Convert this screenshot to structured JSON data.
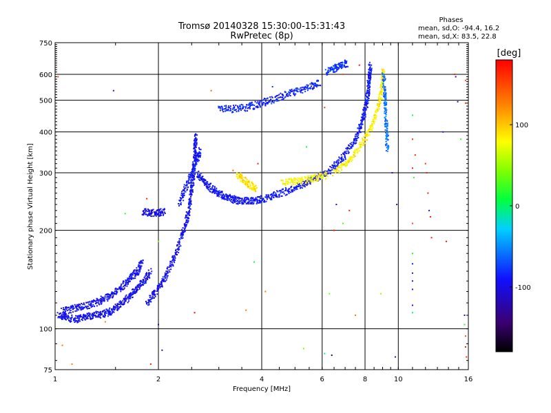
{
  "chart_data": {
    "type": "scatter",
    "title": "Tromsø 20140328 15:30:00-15:31:43",
    "subtitle": "RwPretec (8p)",
    "xlabel": "Frequency [MHz]",
    "ylabel": "Stationary phase Virtual Height [km]",
    "x_scale": "log",
    "y_scale": "log",
    "xlim": [
      1,
      16
    ],
    "ylim": [
      75,
      750
    ],
    "x_ticks": [
      1,
      2,
      4,
      6,
      8,
      10,
      16
    ],
    "y_ticks": [
      75,
      100,
      200,
      300,
      400,
      500,
      600,
      750
    ],
    "grid": true,
    "stats": {
      "heading": "Phases",
      "line_o": "mean, sd,O: -94.4, 16.2",
      "line_x": "mean, sd,X:  83.5, 22.8"
    },
    "colorbar": {
      "label": "[deg]",
      "min": -180,
      "max": 180,
      "ticks": [
        100,
        0,
        -100
      ]
    },
    "traces": [
      {
        "phase": -95,
        "points": [
          [
            1.02,
            110
          ],
          [
            1.08,
            108
          ],
          [
            1.15,
            107
          ],
          [
            1.22,
            109
          ],
          [
            1.3,
            110
          ],
          [
            1.38,
            111
          ],
          [
            1.45,
            113
          ],
          [
            1.52,
            117
          ],
          [
            1.6,
            122
          ],
          [
            1.68,
            128
          ],
          [
            1.75,
            134
          ],
          [
            1.82,
            141
          ],
          [
            1.9,
            150
          ]
        ]
      },
      {
        "phase": -95,
        "points": [
          [
            1.05,
            113
          ],
          [
            1.12,
            115
          ],
          [
            1.2,
            117
          ],
          [
            1.28,
            119
          ],
          [
            1.36,
            122
          ],
          [
            1.44,
            126
          ],
          [
            1.52,
            131
          ],
          [
            1.6,
            137
          ],
          [
            1.67,
            144
          ],
          [
            1.74,
            150
          ],
          [
            1.8,
            160
          ]
        ]
      },
      {
        "phase": -95,
        "points": [
          [
            1.85,
            120
          ],
          [
            1.95,
            128
          ],
          [
            2.05,
            138
          ],
          [
            2.15,
            152
          ],
          [
            2.25,
            170
          ],
          [
            2.35,
            195
          ],
          [
            2.42,
            215
          ],
          [
            2.47,
            240
          ],
          [
            2.5,
            265
          ],
          [
            2.53,
            295
          ],
          [
            2.55,
            330
          ],
          [
            2.56,
            360
          ],
          [
            2.57,
            390
          ]
        ]
      },
      {
        "phase": -92,
        "points": [
          [
            2.6,
            300
          ],
          [
            2.7,
            285
          ],
          [
            2.82,
            272
          ],
          [
            2.95,
            262
          ],
          [
            3.1,
            255
          ],
          [
            3.25,
            250
          ],
          [
            3.4,
            247
          ],
          [
            3.6,
            246
          ],
          [
            3.8,
            247
          ],
          [
            4.0,
            249
          ],
          [
            4.3,
            254
          ],
          [
            4.6,
            261
          ],
          [
            5.0,
            270
          ],
          [
            5.4,
            280
          ],
          [
            5.8,
            290
          ],
          [
            6.2,
            300
          ]
        ]
      },
      {
        "phase": -90,
        "points": [
          [
            6.2,
            300
          ],
          [
            6.6,
            318
          ],
          [
            7.0,
            340
          ],
          [
            7.4,
            370
          ],
          [
            7.7,
            405
          ],
          [
            7.9,
            440
          ],
          [
            8.05,
            480
          ],
          [
            8.15,
            520
          ],
          [
            8.2,
            560
          ],
          [
            8.25,
            600
          ],
          [
            8.3,
            640
          ]
        ]
      },
      {
        "phase": 85,
        "points": [
          [
            6.5,
            300
          ],
          [
            7.0,
            320
          ],
          [
            7.5,
            345
          ],
          [
            8.0,
            380
          ],
          [
            8.4,
            420
          ],
          [
            8.7,
            470
          ],
          [
            8.9,
            520
          ],
          [
            9.0,
            570
          ],
          [
            9.05,
            620
          ]
        ]
      },
      {
        "phase": 80,
        "points": [
          [
            4.6,
            280
          ],
          [
            5.0,
            282
          ],
          [
            5.4,
            285
          ],
          [
            5.8,
            290
          ],
          [
            6.2,
            296
          ]
        ]
      },
      {
        "phase": 90,
        "points": [
          [
            3.4,
            295
          ],
          [
            3.55,
            285
          ],
          [
            3.7,
            275
          ],
          [
            3.85,
            268
          ]
        ]
      },
      {
        "phase": -85,
        "points": [
          [
            3.0,
            470
          ],
          [
            3.3,
            470
          ],
          [
            3.6,
            475
          ],
          [
            3.9,
            485
          ],
          [
            4.2,
            498
          ],
          [
            4.6,
            515
          ],
          [
            5.0,
            530
          ],
          [
            5.5,
            548
          ],
          [
            5.9,
            565
          ]
        ]
      },
      {
        "phase": -80,
        "points": [
          [
            6.2,
            610
          ],
          [
            6.5,
            625
          ],
          [
            6.8,
            640
          ],
          [
            7.1,
            650
          ]
        ]
      },
      {
        "phase": -100,
        "points": [
          [
            1.8,
            228
          ],
          [
            1.9,
            226
          ],
          [
            2.0,
            226
          ],
          [
            2.08,
            228
          ]
        ]
      },
      {
        "phase": -90,
        "points": [
          [
            2.3,
            240
          ],
          [
            2.4,
            270
          ],
          [
            2.5,
            300
          ],
          [
            2.6,
            330
          ],
          [
            2.65,
            350
          ]
        ]
      },
      {
        "phase": -60,
        "points": [
          [
            9.05,
            600
          ],
          [
            9.15,
            520
          ],
          [
            9.2,
            460
          ],
          [
            9.25,
            400
          ],
          [
            9.3,
            350
          ]
        ]
      }
    ],
    "scatter_points": [
      {
        "x": 1.48,
        "y": 535,
        "phase": -100
      },
      {
        "x": 1.02,
        "y": 590,
        "phase": 150
      },
      {
        "x": 2.85,
        "y": 535,
        "phase": 140
      },
      {
        "x": 4.3,
        "y": 550,
        "phase": -80
      },
      {
        "x": 6.9,
        "y": 600,
        "phase": 150
      },
      {
        "x": 7.7,
        "y": 640,
        "phase": 170
      },
      {
        "x": 5.4,
        "y": 360,
        "phase": 10
      },
      {
        "x": 6.1,
        "y": 475,
        "phase": 160
      },
      {
        "x": 3.9,
        "y": 320,
        "phase": 170
      },
      {
        "x": 1.85,
        "y": 250,
        "phase": 170
      },
      {
        "x": 1.6,
        "y": 225,
        "phase": 20
      },
      {
        "x": 2.0,
        "y": 185,
        "phase": 40
      },
      {
        "x": 3.3,
        "y": 305,
        "phase": 140
      },
      {
        "x": 3.8,
        "y": 160,
        "phase": 10
      },
      {
        "x": 6.5,
        "y": 200,
        "phase": 170
      },
      {
        "x": 6.6,
        "y": 240,
        "phase": -100
      },
      {
        "x": 6.9,
        "y": 210,
        "phase": 30
      },
      {
        "x": 7.2,
        "y": 230,
        "phase": 170
      },
      {
        "x": 4.1,
        "y": 130,
        "phase": 130
      },
      {
        "x": 3.6,
        "y": 114,
        "phase": 130
      },
      {
        "x": 2.55,
        "y": 112,
        "phase": 180
      },
      {
        "x": 2.0,
        "y": 103,
        "phase": -130
      },
      {
        "x": 1.4,
        "y": 105,
        "phase": 130
      },
      {
        "x": 1.05,
        "y": 89,
        "phase": 130
      },
      {
        "x": 1.12,
        "y": 78,
        "phase": 130
      },
      {
        "x": 1.9,
        "y": 78,
        "phase": 170
      },
      {
        "x": 2.05,
        "y": 86,
        "phase": -100
      },
      {
        "x": 5.3,
        "y": 87,
        "phase": 40
      },
      {
        "x": 6.1,
        "y": 84,
        "phase": -10
      },
      {
        "x": 6.4,
        "y": 83,
        "phase": -160
      },
      {
        "x": 6.3,
        "y": 128,
        "phase": 40
      },
      {
        "x": 7.5,
        "y": 110,
        "phase": 130
      },
      {
        "x": 8.9,
        "y": 128,
        "phase": 50
      },
      {
        "x": 9.8,
        "y": 82,
        "phase": -100
      },
      {
        "x": 9.6,
        "y": 300,
        "phase": -100
      },
      {
        "x": 9.9,
        "y": 240,
        "phase": -110
      },
      {
        "x": 11.0,
        "y": 450,
        "phase": 10
      },
      {
        "x": 11.0,
        "y": 380,
        "phase": 160
      },
      {
        "x": 11.2,
        "y": 340,
        "phase": 170
      },
      {
        "x": 11.0,
        "y": 310,
        "phase": 170
      },
      {
        "x": 11.1,
        "y": 290,
        "phase": 20
      },
      {
        "x": 11.0,
        "y": 210,
        "phase": 150
      },
      {
        "x": 11.0,
        "y": 170,
        "phase": 10
      },
      {
        "x": 11.0,
        "y": 158,
        "phase": -90
      },
      {
        "x": 11.0,
        "y": 148,
        "phase": -110
      },
      {
        "x": 11.0,
        "y": 140,
        "phase": -100
      },
      {
        "x": 11.0,
        "y": 132,
        "phase": -100
      },
      {
        "x": 11.0,
        "y": 118,
        "phase": -100
      },
      {
        "x": 11.0,
        "y": 112,
        "phase": 10
      },
      {
        "x": 12.0,
        "y": 320,
        "phase": 160
      },
      {
        "x": 12.1,
        "y": 300,
        "phase": 170
      },
      {
        "x": 12.2,
        "y": 260,
        "phase": 170
      },
      {
        "x": 12.3,
        "y": 230,
        "phase": -110
      },
      {
        "x": 12.4,
        "y": 220,
        "phase": 170
      },
      {
        "x": 12.5,
        "y": 190,
        "phase": 170
      },
      {
        "x": 13.5,
        "y": 400,
        "phase": -100
      },
      {
        "x": 13.8,
        "y": 185,
        "phase": 170
      },
      {
        "x": 14.6,
        "y": 600,
        "phase": 170
      },
      {
        "x": 14.7,
        "y": 590,
        "phase": -100
      },
      {
        "x": 14.9,
        "y": 495,
        "phase": -100
      },
      {
        "x": 15.2,
        "y": 380,
        "phase": 20
      },
      {
        "x": 15.7,
        "y": 575,
        "phase": 150
      },
      {
        "x": 15.7,
        "y": 490,
        "phase": 160
      },
      {
        "x": 15.6,
        "y": 110,
        "phase": -110
      },
      {
        "x": 15.6,
        "y": 103,
        "phase": 20
      },
      {
        "x": 15.7,
        "y": 95,
        "phase": 150
      },
      {
        "x": 15.7,
        "y": 88,
        "phase": 170
      },
      {
        "x": 15.8,
        "y": 82,
        "phase": 160
      }
    ]
  }
}
